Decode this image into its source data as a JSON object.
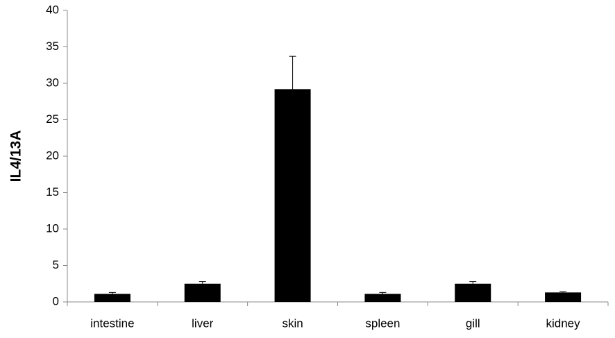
{
  "chart_data": {
    "type": "bar",
    "y_label": "IL4/13A",
    "categories": [
      "intestine",
      "liver",
      "skin",
      "spleen",
      "gill",
      "kidney"
    ],
    "values": [
      1.1,
      2.5,
      29.2,
      1.1,
      2.5,
      1.3
    ],
    "errors": [
      0.2,
      0.3,
      4.5,
      0.2,
      0.3,
      0.1
    ],
    "color": "#000000",
    "ylim": [
      0,
      40
    ],
    "yticks": [
      0,
      5,
      10,
      15,
      20,
      25,
      30,
      35,
      40
    ],
    "grid": false
  }
}
